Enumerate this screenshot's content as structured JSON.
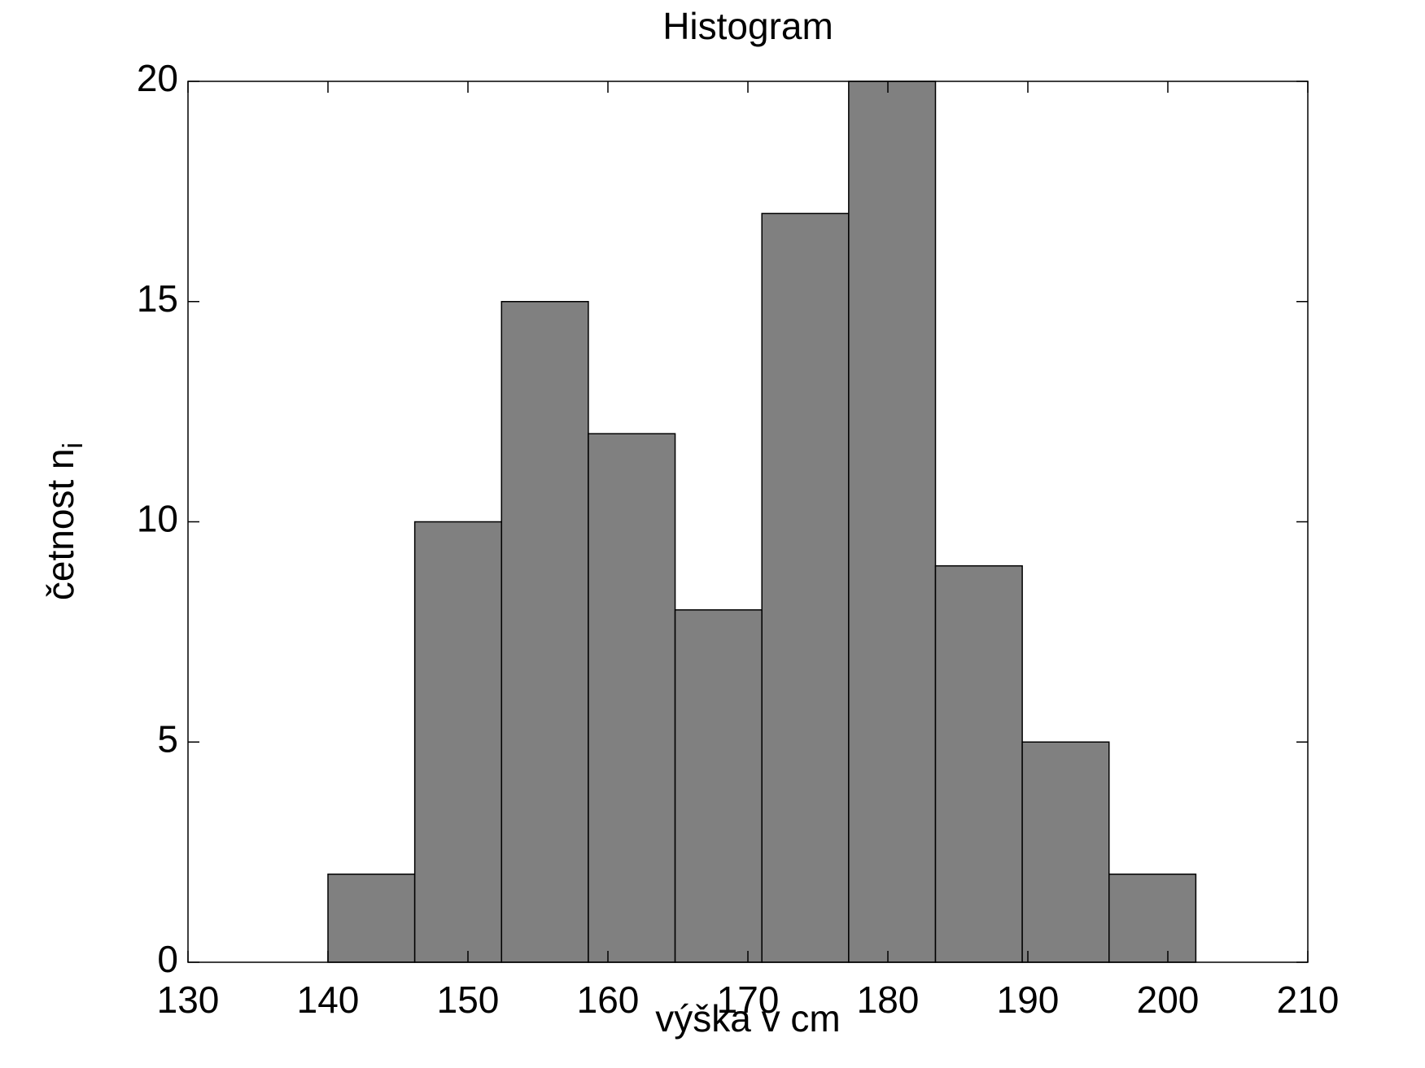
{
  "chart_data": {
    "type": "histogram",
    "title": "Histogram",
    "xlabel": "výška v cm",
    "ylabel": "četnost n",
    "ylabel_subscript": "i",
    "bins": [
      140,
      146.2,
      152.4,
      158.6,
      164.8,
      171,
      177.2,
      183.4,
      189.6,
      195.8,
      202
    ],
    "values": [
      2,
      10,
      15,
      12,
      8,
      17,
      20,
      9,
      5,
      2
    ],
    "color": "#808080",
    "xlim": [
      130,
      210
    ],
    "xticks": [
      130,
      140,
      150,
      160,
      170,
      180,
      190,
      200,
      210
    ],
    "ylim": [
      0,
      20
    ],
    "yticks": [
      0,
      5,
      10,
      15,
      20
    ],
    "grid": false
  }
}
